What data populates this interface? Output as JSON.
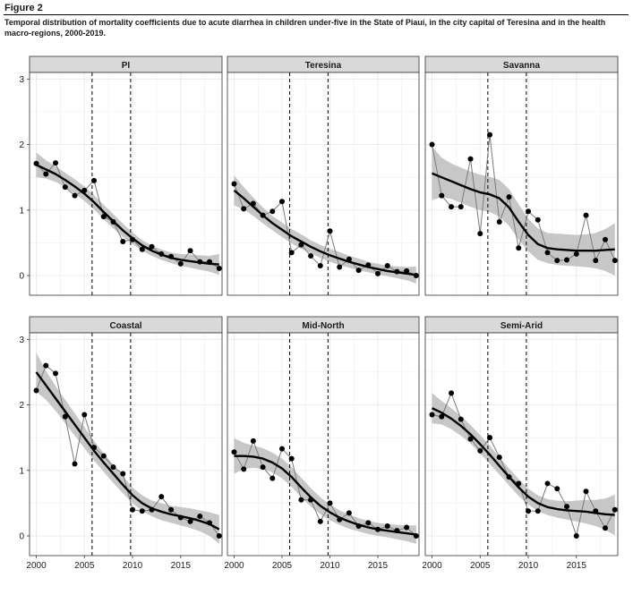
{
  "figure_label": "Figure 2",
  "caption": "Temporal distribution of mortality coefficients due to acute diarrhea in children under-five in the State of Piauí, in the city capital of Teresina and in the health macro-regions, 2000-2019.",
  "colors": {
    "strip": "#d9d9d9",
    "grid": "#ebebeb",
    "band": "#bdbdbd",
    "line": "#000000",
    "observed": "#7a7a7a",
    "point": "#000000"
  },
  "chart_data": {
    "type": "line",
    "layout": "facet-2x3",
    "xlim": [
      1999.3,
      2019.3
    ],
    "ylim": [
      -0.3,
      3.1
    ],
    "x_ticks": [
      2000,
      2005,
      2010,
      2015
    ],
    "y_ticks": [
      0,
      1,
      2,
      3
    ],
    "vlines": [
      2005.8,
      2009.8
    ],
    "grid": true,
    "x": [
      2000,
      2001,
      2002,
      2003,
      2004,
      2005,
      2006,
      2007,
      2008,
      2009,
      2010,
      2011,
      2012,
      2013,
      2014,
      2015,
      2016,
      2017,
      2018,
      2019
    ],
    "panels": [
      {
        "title": "PI",
        "observed": [
          1.71,
          1.55,
          1.72,
          1.35,
          1.22,
          1.3,
          1.45,
          0.9,
          0.82,
          0.52,
          0.55,
          0.4,
          0.44,
          0.33,
          0.29,
          0.18,
          0.38,
          0.21,
          0.21,
          0.11
        ],
        "smooth": [
          1.69,
          1.62,
          1.55,
          1.46,
          1.36,
          1.25,
          1.12,
          0.97,
          0.83,
          0.69,
          0.57,
          0.46,
          0.38,
          0.32,
          0.27,
          0.24,
          0.22,
          0.2,
          0.18,
          0.17
        ],
        "lower": [
          1.5,
          1.48,
          1.43,
          1.35,
          1.25,
          1.14,
          1.01,
          0.86,
          0.72,
          0.59,
          0.48,
          0.38,
          0.3,
          0.24,
          0.19,
          0.15,
          0.12,
          0.09,
          0.06,
          0.01
        ],
        "upper": [
          1.88,
          1.76,
          1.67,
          1.57,
          1.47,
          1.36,
          1.23,
          1.08,
          0.94,
          0.79,
          0.66,
          0.54,
          0.46,
          0.4,
          0.35,
          0.33,
          0.32,
          0.31,
          0.3,
          0.33
        ]
      },
      {
        "title": "Teresina",
        "observed": [
          1.4,
          1.02,
          1.1,
          0.92,
          0.98,
          1.13,
          0.35,
          0.47,
          0.3,
          0.15,
          0.68,
          0.13,
          0.25,
          0.08,
          0.16,
          0.03,
          0.15,
          0.06,
          0.07,
          0.0
        ],
        "smooth": [
          1.3,
          1.18,
          1.05,
          0.92,
          0.8,
          0.7,
          0.6,
          0.52,
          0.44,
          0.37,
          0.31,
          0.26,
          0.21,
          0.17,
          0.13,
          0.1,
          0.07,
          0.05,
          0.03,
          0.01
        ],
        "lower": [
          1.07,
          1.01,
          0.91,
          0.8,
          0.69,
          0.59,
          0.49,
          0.41,
          0.34,
          0.27,
          0.21,
          0.16,
          0.12,
          0.08,
          0.05,
          0.02,
          -0.01,
          -0.04,
          -0.07,
          -0.12
        ],
        "upper": [
          1.53,
          1.35,
          1.19,
          1.04,
          0.91,
          0.81,
          0.71,
          0.63,
          0.54,
          0.47,
          0.41,
          0.36,
          0.3,
          0.26,
          0.21,
          0.18,
          0.15,
          0.14,
          0.13,
          0.14
        ]
      },
      {
        "title": "Savanna",
        "observed": [
          2.0,
          1.22,
          1.05,
          1.05,
          1.78,
          0.64,
          2.15,
          0.82,
          1.2,
          0.42,
          0.98,
          0.85,
          0.35,
          0.23,
          0.24,
          0.33,
          0.92,
          0.23,
          0.55,
          0.23
        ],
        "smooth": [
          1.56,
          1.5,
          1.44,
          1.38,
          1.32,
          1.27,
          1.24,
          1.18,
          1.04,
          0.82,
          0.62,
          0.48,
          0.42,
          0.4,
          0.39,
          0.38,
          0.38,
          0.38,
          0.39,
          0.4
        ],
        "lower": [
          1.15,
          1.2,
          1.17,
          1.11,
          1.05,
          1.0,
          0.97,
          0.9,
          0.76,
          0.55,
          0.37,
          0.24,
          0.19,
          0.16,
          0.15,
          0.14,
          0.13,
          0.11,
          0.07,
          0.0
        ],
        "upper": [
          1.97,
          1.8,
          1.71,
          1.65,
          1.59,
          1.54,
          1.51,
          1.46,
          1.32,
          1.09,
          0.87,
          0.72,
          0.65,
          0.64,
          0.63,
          0.62,
          0.63,
          0.65,
          0.71,
          0.8
        ]
      },
      {
        "title": "Coastal",
        "observed": [
          2.22,
          2.6,
          2.48,
          1.82,
          1.1,
          1.85,
          1.35,
          1.22,
          1.05,
          0.95,
          0.4,
          0.38,
          0.4,
          0.6,
          0.4,
          0.28,
          0.22,
          0.3,
          0.2,
          0.0
        ],
        "smooth": [
          2.5,
          2.3,
          2.1,
          1.9,
          1.7,
          1.5,
          1.3,
          1.12,
          0.95,
          0.78,
          0.62,
          0.5,
          0.42,
          0.37,
          0.33,
          0.3,
          0.27,
          0.23,
          0.18,
          0.1
        ],
        "lower": [
          2.2,
          2.08,
          1.91,
          1.72,
          1.53,
          1.34,
          1.15,
          0.98,
          0.81,
          0.65,
          0.5,
          0.38,
          0.3,
          0.24,
          0.2,
          0.16,
          0.12,
          0.07,
          0.0,
          -0.12
        ],
        "upper": [
          2.8,
          2.52,
          2.29,
          2.08,
          1.87,
          1.66,
          1.45,
          1.26,
          1.09,
          0.91,
          0.74,
          0.62,
          0.54,
          0.5,
          0.46,
          0.44,
          0.42,
          0.39,
          0.36,
          0.32
        ]
      },
      {
        "title": "Mid-North",
        "observed": [
          1.28,
          1.02,
          1.45,
          1.05,
          0.88,
          1.33,
          1.18,
          0.55,
          0.55,
          0.22,
          0.5,
          0.25,
          0.35,
          0.15,
          0.2,
          0.1,
          0.15,
          0.08,
          0.13,
          0.0
        ],
        "smooth": [
          1.22,
          1.22,
          1.21,
          1.18,
          1.12,
          1.03,
          0.9,
          0.74,
          0.59,
          0.46,
          0.36,
          0.28,
          0.22,
          0.17,
          0.13,
          0.1,
          0.08,
          0.06,
          0.04,
          0.02
        ],
        "lower": [
          0.95,
          1.02,
          1.04,
          1.02,
          0.97,
          0.88,
          0.75,
          0.59,
          0.45,
          0.33,
          0.24,
          0.17,
          0.11,
          0.07,
          0.03,
          0.0,
          -0.02,
          -0.05,
          -0.08,
          -0.12
        ],
        "upper": [
          1.49,
          1.42,
          1.38,
          1.34,
          1.27,
          1.18,
          1.05,
          0.89,
          0.73,
          0.59,
          0.48,
          0.39,
          0.33,
          0.27,
          0.23,
          0.2,
          0.18,
          0.17,
          0.16,
          0.16
        ]
      },
      {
        "title": "Semi-Arid",
        "observed": [
          1.85,
          1.82,
          2.18,
          1.78,
          1.48,
          1.3,
          1.5,
          1.2,
          0.9,
          0.8,
          0.38,
          0.38,
          0.8,
          0.72,
          0.45,
          0.0,
          0.68,
          0.38,
          0.12,
          0.4
        ],
        "smooth": [
          1.95,
          1.88,
          1.79,
          1.68,
          1.55,
          1.4,
          1.24,
          1.07,
          0.9,
          0.74,
          0.6,
          0.5,
          0.44,
          0.41,
          0.39,
          0.38,
          0.37,
          0.35,
          0.33,
          0.32
        ],
        "lower": [
          1.72,
          1.7,
          1.63,
          1.53,
          1.41,
          1.26,
          1.1,
          0.94,
          0.77,
          0.61,
          0.48,
          0.38,
          0.32,
          0.28,
          0.25,
          0.22,
          0.19,
          0.15,
          0.09,
          0.01
        ],
        "upper": [
          2.18,
          2.06,
          1.95,
          1.83,
          1.69,
          1.54,
          1.38,
          1.2,
          1.03,
          0.87,
          0.72,
          0.62,
          0.56,
          0.54,
          0.53,
          0.54,
          0.55,
          0.55,
          0.57,
          0.63
        ]
      }
    ]
  }
}
